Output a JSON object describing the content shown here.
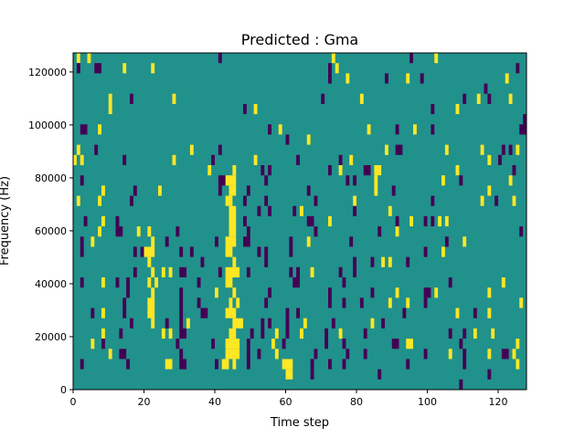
{
  "chart_data": {
    "type": "heatmap",
    "title": "Predicted : Gma",
    "xlabel": "Time step",
    "ylabel": "Frequency (Hz)",
    "xlim": [
      0,
      128
    ],
    "ylim": [
      0,
      127200
    ],
    "n_time_steps": 128,
    "n_freq_bins": 33,
    "xticks": [
      "0",
      "20",
      "40",
      "60",
      "80",
      "100",
      "120"
    ],
    "xtick_values": [
      0,
      20,
      40,
      60,
      80,
      100,
      120
    ],
    "yticks": [
      "0",
      "20000",
      "40000",
      "60000",
      "80000",
      "100000",
      "120000"
    ],
    "ytick_values": [
      0,
      20000,
      40000,
      60000,
      80000,
      100000,
      120000
    ],
    "value_levels": [
      -1,
      0,
      1
    ],
    "colors": {
      "-1": "#440154",
      "0": "#21918c",
      "1": "#fde725"
    },
    "background_value": 0,
    "cells_value_1": {
      "32": "1 4 73 102",
      "31": "14 22 74",
      "30": "77 94 122",
      "28": "10 28 81 114 123",
      "27": "10 51 108",
      "25": "7 58 83 96",
      "24": "66",
      "23": "1 33 88 105 115 125",
      "22": "0 2 28 51 78 117",
      "21": "38 45 75 85-86 108",
      "20": "43-45 85 104 123",
      "19": "8 24 44-45 85 117",
      "18": "1 7 43-44 79 115 124",
      "17": "44-45 64 89",
      "16": "8 44-45 72 95 103 105",
      "15": "7 18 21 44-45 91",
      "14": "5 22 43-45 66 110",
      "13": "20-22 43-44 104",
      "12": "21 45 87 89",
      "11": "22 25 27 43-46 67",
      "10": "8 21 23 43-44 121",
      "9": "22 40 45 91 102 117",
      "8": "21-22 44 46 89 94 126",
      "7": "8 21-22 43-45 108 117",
      "6": "22 32 45-47 65 84",
      "5": "8 25 27 44-45 57 64 75 113 118",
      "4": "5 43-46 56 94-95 125",
      "3": "10 43-46 57 106 117 124",
      "2": "26-27 42-43 45 59-61 125",
      "1": "60-61"
    },
    "cells_value_-1": {
      "32": "41 95",
      "31": "1 6-7 72 125",
      "30": "72 88 98",
      "29": "116",
      "28": "16 70 110 117",
      "27": "48 101",
      "26": "127",
      "25": "2-3 55 91 101 126-127",
      "24": "60",
      "23": "6 41 91-92 121 123",
      "22": "14 39 63 75 120",
      "21": "53 55 72 82-83 124",
      "20": "2 41-42 54 77 79 109",
      "19": "17 41 49 66 90",
      "18": "16 48 54 68 101 119",
      "17": "52 55 62 79",
      "16": "3 12 48 66 67 91 99 101",
      "15": "12-13 29 49 68 86 126",
      "14": "2 26 40 48-49 61 78 105",
      "13": "2 17 19 30 33 52 54 61 99",
      "12": "36 54 79 84 94",
      "11": "17 30-31 41 49 61 63 75 79",
      "10": "2 12 15 35 62-63 76 106",
      "9": "15 30 55 72 84 99-100",
      "8": "14 30 35 54 72 76 81 99",
      "7": "5 14 30 36-37 60 63 93 113",
      "6": "16 26 30 53 55 60 73 87",
      "5": "13 30-31 50 53 60 71 82 106 110",
      "4": "8 29 39 49 59 71 76 90-91 109",
      "3": "13-14 30 49 52 68 77 82 99 110 121-122",
      "2": "2 15 30-31 40 49 67 72 76 94 110",
      "1": "67 86 117",
      "0": "109"
    }
  }
}
